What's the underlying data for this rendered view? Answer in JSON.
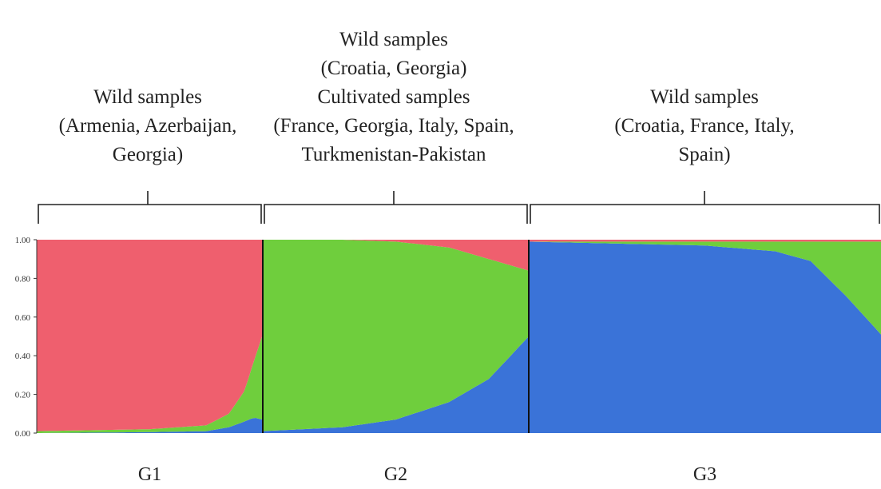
{
  "chart_data": {
    "type": "bar",
    "stacked": true,
    "ylim": [
      0,
      1
    ],
    "yticks": [
      "0.00",
      "0.20",
      "0.40",
      "0.60",
      "0.80",
      "1.00"
    ],
    "colors": {
      "cluster_red": "#ef5f6e",
      "cluster_green": "#6fce3d",
      "cluster_blue": "#3a73d8"
    },
    "groups": [
      {
        "label": "G1",
        "description_lines": [
          "Wild samples",
          "(Armenia, Azerbaijan,",
          "Georgia)"
        ],
        "dominant": "cluster_red",
        "membership_profile": {
          "position": [
            0,
            0.5,
            0.75,
            0.85,
            0.92,
            0.96,
            1.0
          ],
          "cluster_red": [
            0.99,
            0.98,
            0.96,
            0.9,
            0.78,
            0.63,
            0.49
          ],
          "cluster_green": [
            0.01,
            0.015,
            0.03,
            0.07,
            0.16,
            0.29,
            0.44
          ],
          "cluster_blue": [
            0.0,
            0.005,
            0.01,
            0.03,
            0.06,
            0.08,
            0.07
          ]
        }
      },
      {
        "label": "G2",
        "description_lines": [
          "Wild samples",
          "(Croatia, Georgia)",
          "Cultivated samples",
          "(France, Georgia, Italy, Spain,",
          "Turkmenistan-Pakistan"
        ],
        "dominant": "cluster_green",
        "membership_profile": {
          "position": [
            0,
            0.3,
            0.5,
            0.7,
            0.85,
            1.0
          ],
          "cluster_red": [
            0.0,
            0.0,
            0.01,
            0.04,
            0.1,
            0.16
          ],
          "cluster_green": [
            0.99,
            0.97,
            0.92,
            0.8,
            0.62,
            0.34
          ],
          "cluster_blue": [
            0.01,
            0.03,
            0.07,
            0.16,
            0.28,
            0.5
          ]
        }
      },
      {
        "label": "G3",
        "description_lines": [
          "Wild samples",
          "(Croatia, France, Italy,",
          "Spain)"
        ],
        "dominant": "cluster_blue",
        "membership_profile": {
          "position": [
            0,
            0.5,
            0.7,
            0.8,
            0.9,
            1.0
          ],
          "cluster_red": [
            0.01,
            0.01,
            0.01,
            0.01,
            0.01,
            0.01
          ],
          "cluster_green": [
            0.0,
            0.02,
            0.05,
            0.1,
            0.28,
            0.48
          ],
          "cluster_blue": [
            0.99,
            0.97,
            0.94,
            0.89,
            0.71,
            0.51
          ]
        }
      }
    ]
  }
}
